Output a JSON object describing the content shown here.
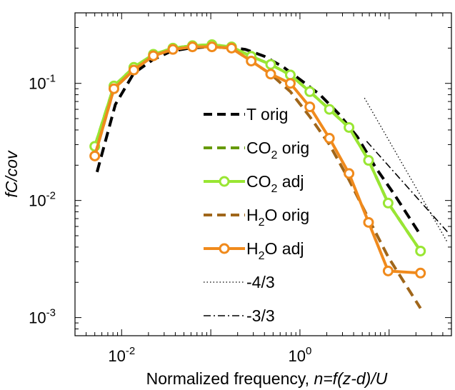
{
  "chart_data": {
    "type": "line",
    "xscale": "log",
    "yscale": "log",
    "xlim": [
      0.003,
      50
    ],
    "ylim": [
      0.0007,
      0.4
    ],
    "xlabel": {
      "prefix": "Normalized frequency, ",
      "italic": "n=f(z-d)/U"
    },
    "ylabel": "fC/cov",
    "x_ticks": [
      {
        "value": 0.01,
        "base": "10",
        "exp": "-2"
      },
      {
        "value": 1,
        "base": "10",
        "exp": "0"
      }
    ],
    "y_ticks": [
      {
        "value": 0.001,
        "base": "10",
        "exp": "-3"
      },
      {
        "value": 0.01,
        "base": "10",
        "exp": "-2"
      },
      {
        "value": 0.1,
        "base": "10",
        "exp": "-1"
      }
    ],
    "grid": false,
    "legend_position": "center-right",
    "series": [
      {
        "name": "T orig",
        "label_main": "T orig",
        "color": "#000000",
        "style": "dashed",
        "width": 4,
        "marker": false,
        "x": [
          0.0053,
          0.0085,
          0.0137,
          0.0221,
          0.0358,
          0.0577,
          0.093,
          0.15,
          0.245,
          0.4,
          0.65,
          1.05,
          1.68,
          2.72,
          4.4,
          7.1,
          11.5,
          22
        ],
        "y": [
          0.0175,
          0.066,
          0.122,
          0.158,
          0.188,
          0.2,
          0.205,
          0.205,
          0.195,
          0.17,
          0.138,
          0.105,
          0.08,
          0.055,
          0.035,
          0.019,
          0.0112,
          0.0052
        ]
      },
      {
        "name": "CO2 orig",
        "label_main": "CO",
        "label_sub": "2",
        "label_rest": " orig",
        "color": "#669900",
        "style": "dashed",
        "width": 4,
        "marker": false,
        "x": [
          0.005,
          0.0082,
          0.0137,
          0.0227,
          0.0376,
          0.0623,
          0.103,
          0.171,
          0.284,
          0.47,
          0.78,
          1.29,
          2.14,
          3.55,
          5.88,
          9.75,
          22.5
        ],
        "y": [
          0.029,
          0.095,
          0.137,
          0.177,
          0.2,
          0.21,
          0.214,
          0.205,
          0.17,
          0.145,
          0.118,
          0.085,
          0.06,
          0.042,
          0.022,
          0.0095,
          0.0037
        ]
      },
      {
        "name": "CO2 adj",
        "label_main": "CO",
        "label_sub": "2",
        "label_rest": " adj",
        "color": "#99e633",
        "style": "solid",
        "width": 4,
        "marker": true,
        "x": [
          0.005,
          0.0082,
          0.0137,
          0.0227,
          0.0376,
          0.0623,
          0.103,
          0.171,
          0.284,
          0.47,
          0.78,
          1.29,
          2.14,
          3.55,
          5.88,
          9.75,
          22.5
        ],
        "y": [
          0.029,
          0.095,
          0.137,
          0.177,
          0.2,
          0.21,
          0.214,
          0.205,
          0.17,
          0.145,
          0.118,
          0.085,
          0.06,
          0.042,
          0.022,
          0.0095,
          0.0037
        ]
      },
      {
        "name": "H2O orig",
        "label_main": "H",
        "label_sub": "2",
        "label_rest": "O orig",
        "color": "#a0661a",
        "style": "dashed",
        "width": 4,
        "marker": false,
        "x": [
          0.005,
          0.0082,
          0.0137,
          0.0227,
          0.0376,
          0.0623,
          0.103,
          0.171,
          0.284,
          0.47,
          0.78,
          1.29,
          2.14,
          3.55,
          5.88,
          9.75,
          22.5
        ],
        "y": [
          0.024,
          0.09,
          0.13,
          0.172,
          0.195,
          0.205,
          0.205,
          0.2,
          0.155,
          0.12,
          0.085,
          0.052,
          0.03,
          0.015,
          0.007,
          0.0033,
          0.0012
        ]
      },
      {
        "name": "H2O adj",
        "label_main": "H",
        "label_sub": "2",
        "label_rest": "O adj",
        "color": "#f08a1c",
        "style": "solid",
        "width": 4,
        "marker": true,
        "x": [
          0.005,
          0.0082,
          0.0137,
          0.0227,
          0.0376,
          0.0623,
          0.103,
          0.171,
          0.284,
          0.47,
          0.78,
          1.29,
          2.14,
          3.55,
          5.88,
          9.75,
          22.5
        ],
        "y": [
          0.024,
          0.09,
          0.13,
          0.172,
          0.195,
          0.205,
          0.205,
          0.2,
          0.155,
          0.12,
          0.1,
          0.063,
          0.034,
          0.017,
          0.0065,
          0.0025,
          0.0024
        ]
      },
      {
        "name": "-4/3",
        "label_main": "-4/3",
        "color": "#000000",
        "style": "dotted",
        "width": 1.3,
        "marker": false,
        "x": [
          5.3,
          45
        ],
        "y": [
          0.075,
          0.0044
        ]
      },
      {
        "name": "-3/3",
        "label_main": "-3/3",
        "color": "#000000",
        "style": "dashdot",
        "width": 1.6,
        "marker": false,
        "x": [
          5.6,
          45
        ],
        "y": [
          0.032,
          0.0054
        ]
      }
    ]
  }
}
